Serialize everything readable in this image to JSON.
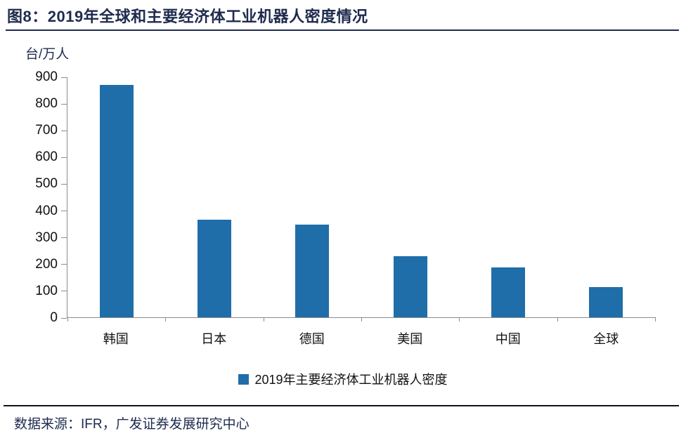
{
  "header": {
    "title": "图8：2019年全球和主要经济体工业机器人密度情况"
  },
  "chart_data": {
    "type": "bar",
    "title": "2019年全球和主要经济体工业机器人密度情况",
    "unit_label": "台/万人",
    "categories": [
      "韩国",
      "日本",
      "德国",
      "美国",
      "中国",
      "全球"
    ],
    "values": [
      868,
      364,
      346,
      228,
      187,
      113
    ],
    "xlabel": "",
    "ylabel": "台/万人",
    "ylim": [
      0,
      900
    ],
    "ytick_step": 100,
    "grid": false,
    "legend": {
      "label": "2019年主要经济体工业机器人密度",
      "position": "bottom"
    },
    "bar_color": "#1f6ea9"
  },
  "footer": {
    "source": "数据来源：IFR，广发证券发展研究中心"
  },
  "colors": {
    "accent_navy": "#1e2b4d",
    "bar_blue": "#1f6ea9",
    "axis_gray": "#8c8c8c",
    "text_black": "#111111"
  }
}
